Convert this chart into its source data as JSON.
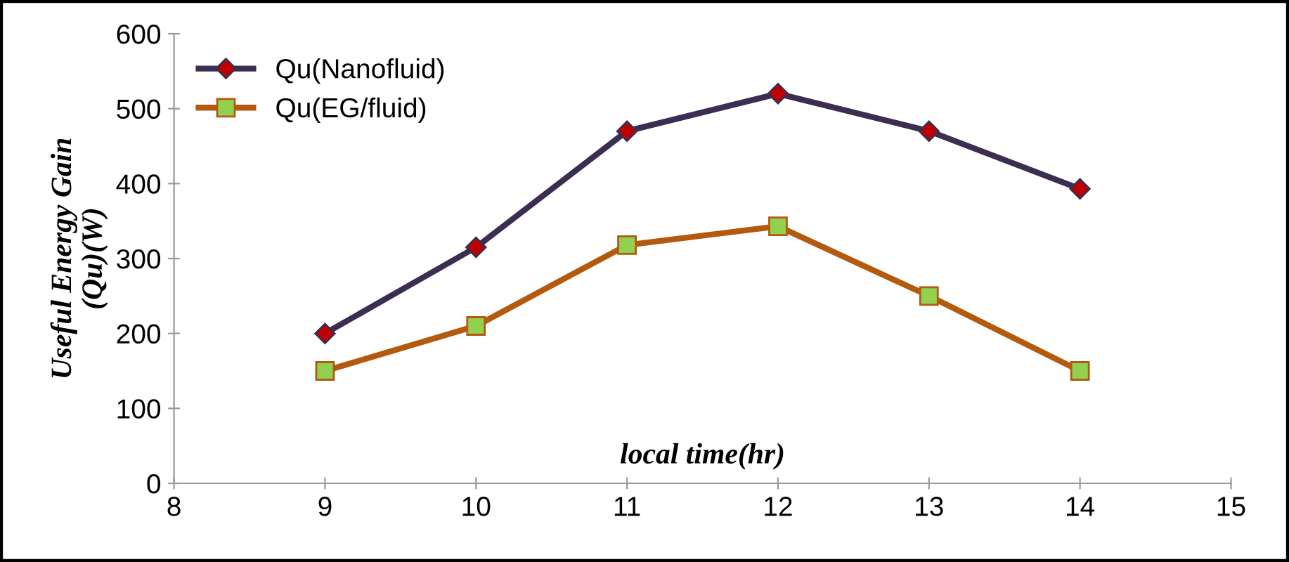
{
  "chart_data": {
    "type": "line",
    "xlabel": "local time(hr)",
    "ylabel": "Useful Energy Gain\n(Qu)(W)",
    "x": [
      9,
      10,
      11,
      12,
      13,
      14
    ],
    "series": [
      {
        "name": "Qu(Nanofluid)",
        "color": "#3b2e50",
        "marker": "diamond",
        "values": [
          200,
          315,
          470,
          520,
          470,
          393
        ]
      },
      {
        "name": "Qu(EG/fluid)",
        "color": "#b35a0f",
        "marker": "square",
        "values": [
          150,
          210,
          318,
          343,
          250,
          150
        ]
      }
    ],
    "xlim": [
      8,
      15
    ],
    "xticks": [
      8,
      9,
      10,
      11,
      12,
      13,
      14,
      15
    ],
    "ylim": [
      0,
      600
    ],
    "yticks": [
      0,
      100,
      200,
      300,
      400,
      500,
      600
    ],
    "grid": false,
    "legend": "top left",
    "line_style": "solid"
  }
}
